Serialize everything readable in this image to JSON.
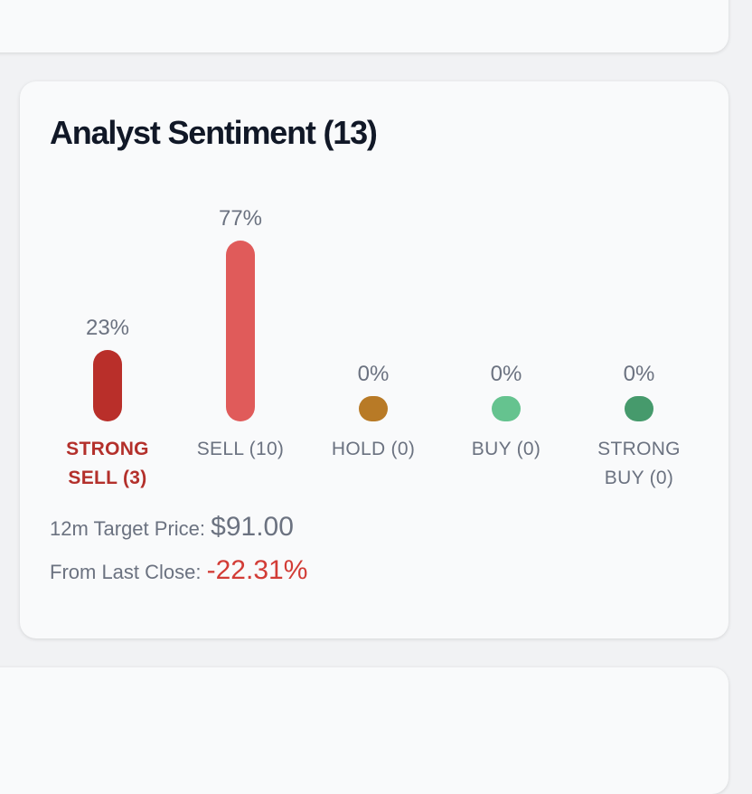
{
  "chart_data": {
    "type": "bar",
    "title": "Analyst Sentiment (13)",
    "categories": [
      "STRONG SELL (3)",
      "SELL (10)",
      "HOLD (0)",
      "BUY (0)",
      "STRONG BUY (0)"
    ],
    "values": [
      23,
      77,
      0,
      0,
      0
    ],
    "value_labels": [
      "23%",
      "77%",
      "0%",
      "0%",
      "0%"
    ],
    "colors": [
      "#b92f2a",
      "#e05b5a",
      "#b87a26",
      "#65c38f",
      "#469a6c"
    ],
    "highlight": 0
  },
  "target": {
    "label": "12m Target Price:",
    "value": "$91.00"
  },
  "change": {
    "label": "From Last Close:",
    "value": "-22.31%"
  }
}
